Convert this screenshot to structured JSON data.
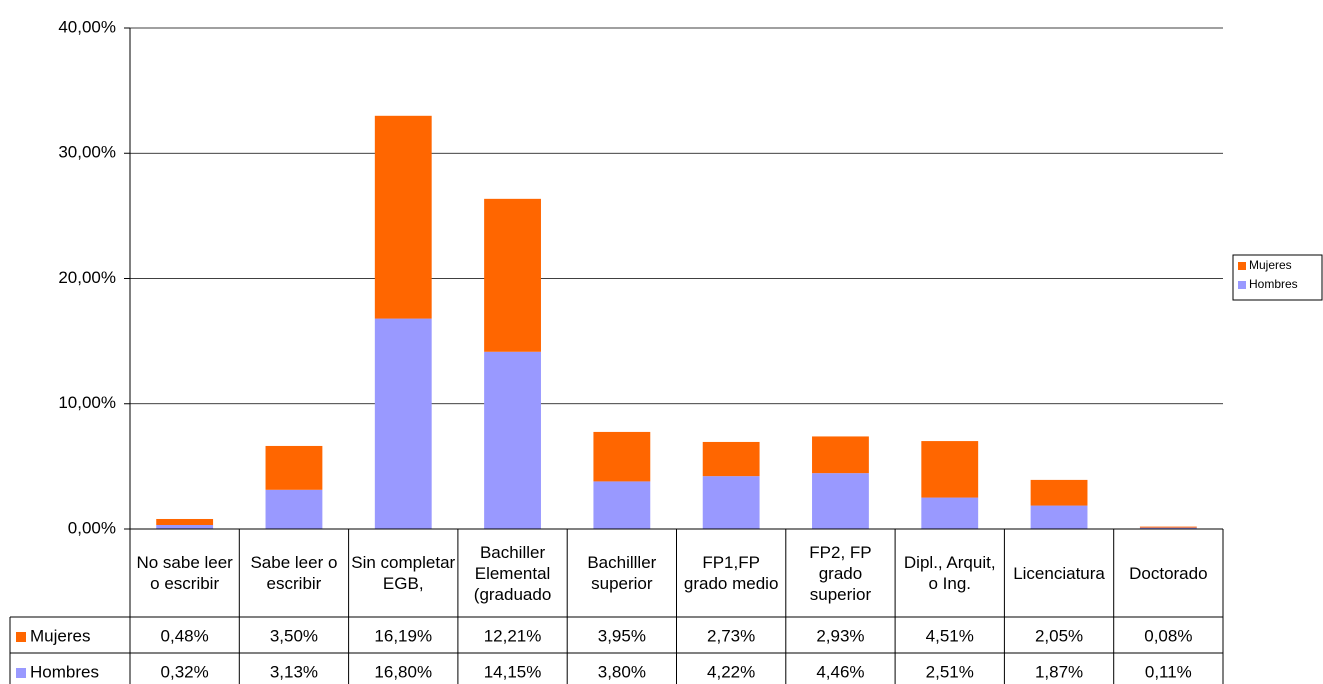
{
  "chart_data": {
    "type": "bar",
    "stacked": true,
    "categories": [
      "No sabe leer o escribir",
      "Sabe leer o escribir",
      "Sin completar EGB,",
      "Bachiller Elemental (graduado",
      "Bachilller superior",
      "FP1,FP grado medio",
      "FP2, FP grado superior",
      "Dipl., Arquit, o Ing.",
      "Licenciatura",
      "Doctorado"
    ],
    "series": [
      {
        "name": "Mujeres",
        "color": "#ff6600",
        "values": [
          0.48,
          3.5,
          16.19,
          12.21,
          3.95,
          2.73,
          2.93,
          4.51,
          2.05,
          0.08
        ],
        "value_labels": [
          "0,48%",
          "3,50%",
          "16,19%",
          "12,21%",
          "3,95%",
          "2,73%",
          "2,93%",
          "4,51%",
          "2,05%",
          "0,08%"
        ]
      },
      {
        "name": "Hombres",
        "color": "#9999ff",
        "values": [
          0.32,
          3.13,
          16.8,
          14.15,
          3.8,
          4.22,
          4.46,
          2.51,
          1.87,
          0.11
        ],
        "value_labels": [
          "0,32%",
          "3,13%",
          "16,80%",
          "14,15%",
          "3,80%",
          "4,22%",
          "4,46%",
          "2,51%",
          "1,87%",
          "0,11%"
        ]
      }
    ],
    "ylim": [
      0,
      40
    ],
    "yticks": [
      {
        "value": 0,
        "label": "0,00%"
      },
      {
        "value": 10,
        "label": "10,00%"
      },
      {
        "value": 20,
        "label": "20,00%"
      },
      {
        "value": 30,
        "label": "30,00%"
      },
      {
        "value": 40,
        "label": "40,00%"
      }
    ],
    "grid": true,
    "legend": "right"
  }
}
